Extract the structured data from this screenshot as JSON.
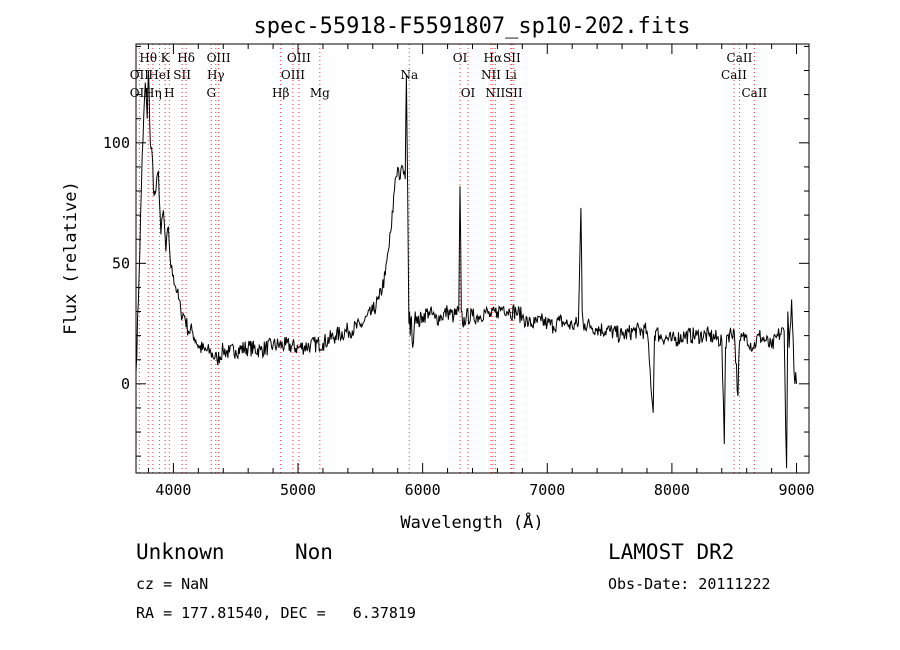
{
  "chart_data": {
    "type": "line",
    "title": "spec-55918-F5591807_sp10-202.fits",
    "xlabel": "Wavelength (Å)",
    "ylabel": "Flux (relative)",
    "xlim": [
      3700,
      9100
    ],
    "ylim": [
      -37,
      141
    ],
    "x_ticks": [
      4000,
      5000,
      6000,
      7000,
      8000,
      9000
    ],
    "y_ticks": [
      0,
      50,
      100
    ],
    "grid": false,
    "line_color": "#000000",
    "marker_color": "#ff3030",
    "series": [
      {
        "x": [
          3700,
          3725,
          3750,
          3775,
          3790,
          3800,
          3815,
          3830,
          3845,
          3860,
          3880,
          3900,
          3920,
          3940,
          3960,
          3980,
          4000,
          4030,
          4060,
          4090,
          4120,
          4150,
          4180,
          4210,
          4250,
          4300,
          4350,
          4400,
          4450,
          4500,
          4600,
          4700,
          4800,
          4900,
          5000,
          5100,
          5200,
          5300,
          5400,
          5500,
          5600,
          5650,
          5700,
          5750,
          5780,
          5800,
          5820,
          5840,
          5860,
          5870,
          5880,
          5890,
          5895,
          5900,
          5910,
          5920,
          5940,
          5960,
          6000,
          6050,
          6100,
          6150,
          6200,
          6250,
          6290,
          6300,
          6310,
          6320,
          6350,
          6400,
          6450,
          6500,
          6550,
          6600,
          6650,
          6700,
          6750,
          6800,
          6850,
          6900,
          6950,
          7000,
          7050,
          7100,
          7150,
          7200,
          7250,
          7270,
          7280,
          7290,
          7300,
          7350,
          7400,
          7500,
          7600,
          7700,
          7800,
          7850,
          7860,
          7870,
          7900,
          8000,
          8100,
          8200,
          8300,
          8400,
          8420,
          8430,
          8440,
          8500,
          8530,
          8540,
          8550,
          8600,
          8650,
          8700,
          8750,
          8800,
          8850,
          8900,
          8920,
          8930,
          8940,
          8960,
          8980,
          9000
        ],
        "y": [
          5,
          45,
          95,
          125,
          110,
          130,
          100,
          95,
          78,
          80,
          88,
          62,
          72,
          55,
          65,
          48,
          45,
          38,
          30,
          28,
          22,
          22,
          18,
          15,
          14,
          13,
          10,
          14,
          13,
          14,
          15,
          14,
          16,
          16,
          15,
          16,
          17,
          20,
          22,
          24,
          30,
          35,
          45,
          65,
          85,
          90,
          85,
          90,
          85,
          128,
          80,
          25,
          30,
          20,
          28,
          15,
          30,
          25,
          28,
          30,
          27,
          28,
          30,
          28,
          30,
          82,
          30,
          25,
          28,
          28,
          28,
          30,
          28,
          30,
          32,
          30,
          30,
          28,
          25,
          25,
          26,
          25,
          24,
          26,
          25,
          24,
          25,
          73,
          30,
          24,
          25,
          24,
          23,
          22,
          20,
          22,
          22,
          -12,
          20,
          22,
          20,
          18,
          20,
          20,
          20,
          18,
          -25,
          15,
          20,
          22,
          -5,
          15,
          18,
          20,
          15,
          20,
          18,
          15,
          20,
          22,
          -35,
          30,
          15,
          35,
          5,
          0
        ]
      }
    ],
    "line_labels": [
      {
        "text": "Hθ",
        "x": 3798,
        "row": 1
      },
      {
        "text": "K",
        "x": 3934,
        "row": 1
      },
      {
        "text": "Hδ",
        "x": 4102,
        "row": 1
      },
      {
        "text": "OIII",
        "x": 4363,
        "row": 1
      },
      {
        "text": "OIII",
        "x": 5007,
        "row": 1
      },
      {
        "text": "OI",
        "x": 6300,
        "row": 1
      },
      {
        "text": "Hα",
        "x": 6563,
        "row": 1
      },
      {
        "text": "SII",
        "x": 6716,
        "row": 1
      },
      {
        "text": "CaII",
        "x": 8542,
        "row": 1
      },
      {
        "text": "OII",
        "x": 3727,
        "row": 2
      },
      {
        "text": "HeI",
        "x": 3889,
        "row": 2
      },
      {
        "text": "SII",
        "x": 4070,
        "row": 2
      },
      {
        "text": "Hγ",
        "x": 4340,
        "row": 2
      },
      {
        "text": "OIII",
        "x": 4959,
        "row": 2
      },
      {
        "text": "Na",
        "x": 5893,
        "row": 2
      },
      {
        "text": "NII",
        "x": 6548,
        "row": 2
      },
      {
        "text": "Li",
        "x": 6708,
        "row": 2
      },
      {
        "text": "CaII",
        "x": 8498,
        "row": 2
      },
      {
        "text": "OII",
        "x": 3727,
        "row": 3
      },
      {
        "text": "Hη",
        "x": 3835,
        "row": 3
      },
      {
        "text": "H",
        "x": 3968,
        "row": 3
      },
      {
        "text": "G",
        "x": 4304,
        "row": 3
      },
      {
        "text": "Hβ",
        "x": 4861,
        "row": 3
      },
      {
        "text": "Mg",
        "x": 5175,
        "row": 3
      },
      {
        "text": "OI",
        "x": 6364,
        "row": 3
      },
      {
        "text": "NII",
        "x": 6583,
        "row": 3
      },
      {
        "text": "SII",
        "x": 6731,
        "row": 3
      },
      {
        "text": "CaII",
        "x": 8662,
        "row": 3
      }
    ],
    "line_markers": [
      3727,
      3798,
      3835,
      3889,
      3934,
      3968,
      4070,
      4102,
      4304,
      4340,
      4363,
      4861,
      4959,
      5007,
      5175,
      5893,
      6300,
      6364,
      6548,
      6563,
      6583,
      6708,
      6716,
      6731,
      8498,
      8542,
      8662
    ]
  },
  "footer": {
    "class_label": "Unknown",
    "subclass_label": "Non",
    "survey": "LAMOST DR2",
    "cz": "cz = NaN",
    "obs_date": "Obs-Date: 20111222",
    "coords": "RA = 177.81540, DEC =   6.37819"
  }
}
